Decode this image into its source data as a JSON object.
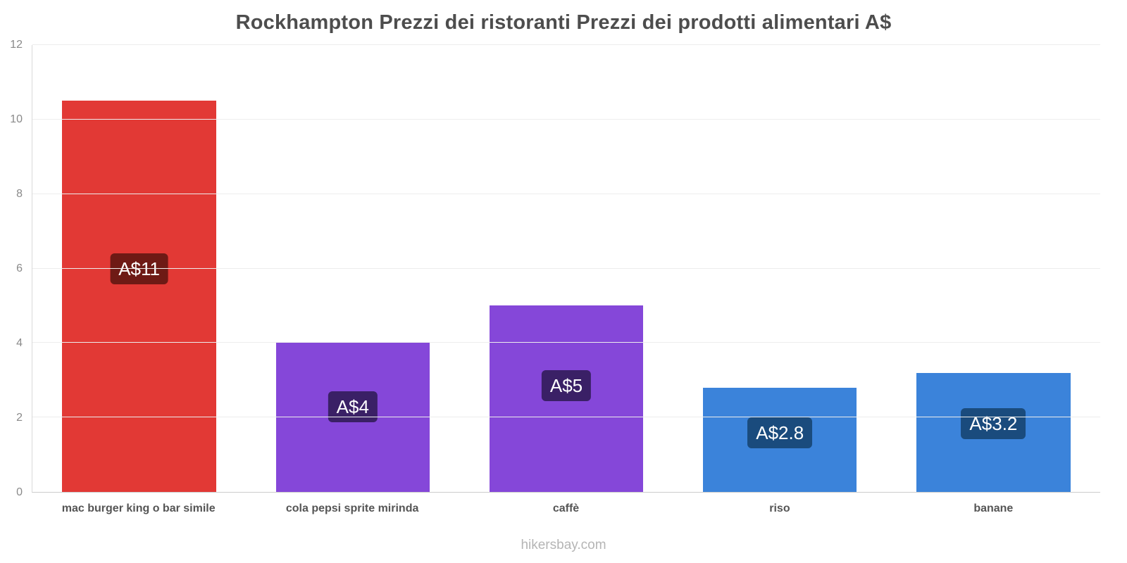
{
  "title": "Rockhampton Prezzi dei ristoranti Prezzi dei prodotti alimentari A$",
  "footer": "hikersbay.com",
  "chart_data": {
    "type": "bar",
    "title": "Rockhampton Prezzi dei ristoranti Prezzi dei prodotti alimentari A$",
    "categories": [
      "mac burger king o bar simile",
      "cola pepsi sprite mirinda",
      "caffè",
      "riso",
      "banane"
    ],
    "values": [
      10.5,
      4.02,
      5.0,
      2.8,
      3.2
    ],
    "value_labels": [
      "A$11",
      "A$4",
      "A$5",
      "A$2.8",
      "A$3.2"
    ],
    "bar_colors": [
      "#e23935",
      "#8547d9",
      "#8547d9",
      "#3b83da",
      "#3b83da"
    ],
    "label_colors": [
      "#6e1a15",
      "#3a2066",
      "#3a2066",
      "#1a4b7d",
      "#1a4b7d"
    ],
    "currency": "A$",
    "xlabel": "",
    "ylabel": "",
    "ylim": [
      0,
      12
    ],
    "yticks": [
      0,
      2,
      4,
      6,
      8,
      10,
      12
    ],
    "grid": true,
    "legend": "none"
  }
}
